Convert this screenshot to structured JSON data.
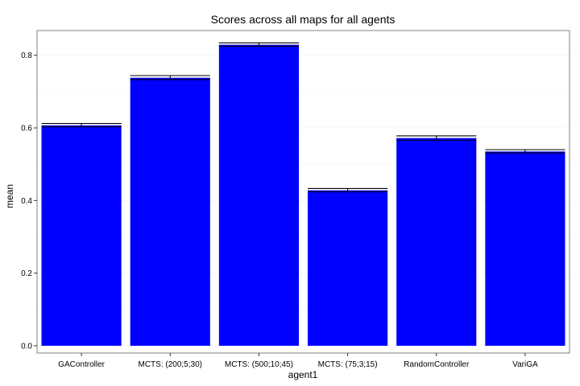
{
  "chart_data": {
    "type": "bar",
    "title": "Scores across all maps for all agents",
    "xlabel": "agent1",
    "ylabel": "mean",
    "categories": [
      "GAController",
      "MCTS: (200;5;30)",
      "MCTS: (500;10;45)",
      "MCTS: (75;3;15)",
      "RandomController",
      "VariGA"
    ],
    "values": [
      0.607,
      0.738,
      0.829,
      0.428,
      0.572,
      0.535
    ],
    "error_low": [
      0.603,
      0.733,
      0.825,
      0.424,
      0.566,
      0.531
    ],
    "error_high": [
      0.612,
      0.744,
      0.834,
      0.433,
      0.578,
      0.54
    ],
    "ylim": [
      -0.02,
      0.868
    ],
    "yticks": [
      0.0,
      0.2,
      0.4,
      0.6,
      0.8
    ],
    "ytick_labels": [
      "0.0",
      "0.2",
      "0.4",
      "0.6",
      "0.8"
    ],
    "grid": true,
    "legend": "none",
    "colors": {
      "bar": "#0000ff",
      "background": "#ffffff",
      "grid": "#f5f5f5",
      "panel_border": "#7f7f7f",
      "text": "#000000"
    }
  }
}
